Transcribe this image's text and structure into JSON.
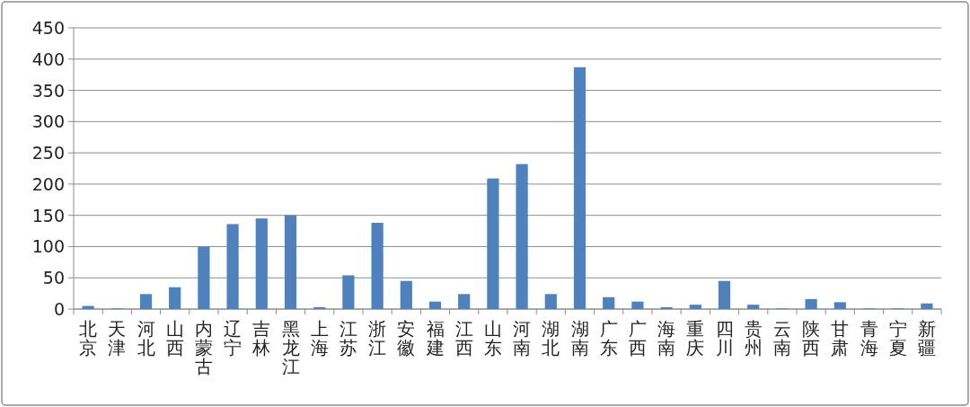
{
  "chart_data": {
    "type": "bar",
    "categories": [
      "北京",
      "天津",
      "河北",
      "山西",
      "内蒙古",
      "辽宁",
      "吉林",
      "黑龙江",
      "上海",
      "江苏",
      "浙江",
      "安徽",
      "福建",
      "江西",
      "山东",
      "河南",
      "湖北",
      "湖南",
      "广东",
      "广西",
      "海南",
      "重庆",
      "四川",
      "贵州",
      "云南",
      "陕西",
      "甘肃",
      "青海",
      "宁夏",
      "新疆"
    ],
    "values": [
      5,
      1,
      24,
      35,
      100,
      136,
      145,
      150,
      3,
      54,
      138,
      45,
      12,
      24,
      209,
      232,
      24,
      387,
      19,
      12,
      3,
      7,
      45,
      7,
      1,
      16,
      11,
      1,
      1,
      9
    ],
    "color": "#4f81bd",
    "ylim": [
      0,
      450
    ],
    "yticks": [
      0,
      50,
      100,
      150,
      200,
      250,
      300,
      350,
      400,
      450
    ],
    "grid": "y"
  }
}
